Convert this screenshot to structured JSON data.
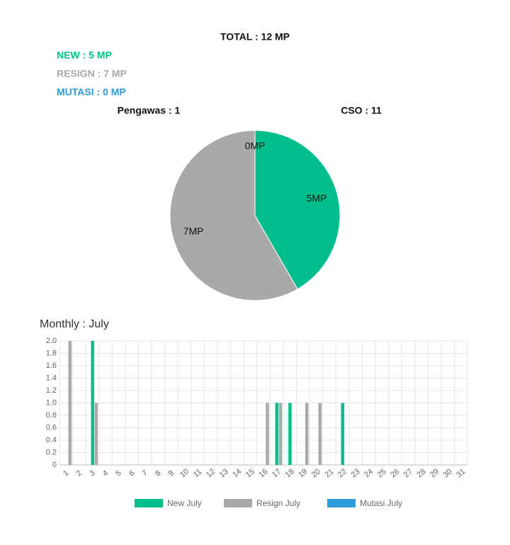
{
  "summary": {
    "total": "TOTAL : 12 MP",
    "new": "NEW : 5 MP",
    "resign": "RESIGN : 7 MP",
    "mutasi": "MUTASI : 0 MP",
    "pengawas": "Pengawas : 1",
    "cso": "CSO : 11"
  },
  "chart_data": [
    {
      "type": "pie",
      "values": [
        5,
        7,
        0
      ],
      "value_labels": [
        "5MP",
        "7MP",
        "0MP"
      ],
      "colors": [
        "#00be8c",
        "#a9a9a9",
        "#2f9bd8"
      ]
    },
    {
      "type": "bar",
      "title": "Monthly : July",
      "categories": [
        "1",
        "2",
        "3",
        "4",
        "5",
        "6",
        "7",
        "8",
        "9",
        "10",
        "11",
        "12",
        "13",
        "14",
        "15",
        "16",
        "17",
        "18",
        "19",
        "20",
        "21",
        "22",
        "23",
        "24",
        "25",
        "26",
        "27",
        "28",
        "29",
        "30",
        "31"
      ],
      "series": [
        {
          "name": "New July",
          "color": "#00be8c",
          "values": [
            0,
            0,
            2,
            0,
            0,
            0,
            0,
            0,
            0,
            0,
            0,
            0,
            0,
            0,
            0,
            0,
            1,
            1,
            0,
            0,
            0,
            1,
            0,
            0,
            0,
            0,
            0,
            0,
            0,
            0,
            0
          ]
        },
        {
          "name": "Resign July",
          "color": "#a9a9a9",
          "values": [
            2,
            0,
            1,
            0,
            0,
            0,
            0,
            0,
            0,
            0,
            0,
            0,
            0,
            0,
            0,
            1,
            1,
            0,
            1,
            1,
            0,
            0,
            0,
            0,
            0,
            0,
            0,
            0,
            0,
            0,
            0
          ]
        },
        {
          "name": "Mutasi July",
          "color": "#2f9bd8",
          "values": [
            0,
            0,
            0,
            0,
            0,
            0,
            0,
            0,
            0,
            0,
            0,
            0,
            0,
            0,
            0,
            0,
            0,
            0,
            0,
            0,
            0,
            0,
            0,
            0,
            0,
            0,
            0,
            0,
            0,
            0,
            0
          ]
        }
      ],
      "ylim": [
        0,
        2
      ],
      "yticks": [
        0,
        0.2,
        0.4,
        0.6,
        0.8,
        {
          "value": 1,
          "label": "1.0"
        },
        1.2,
        1.4,
        1.6,
        1.8,
        {
          "value": 2,
          "label": "2.0"
        }
      ],
      "grid": true,
      "legend": "bottom"
    }
  ]
}
